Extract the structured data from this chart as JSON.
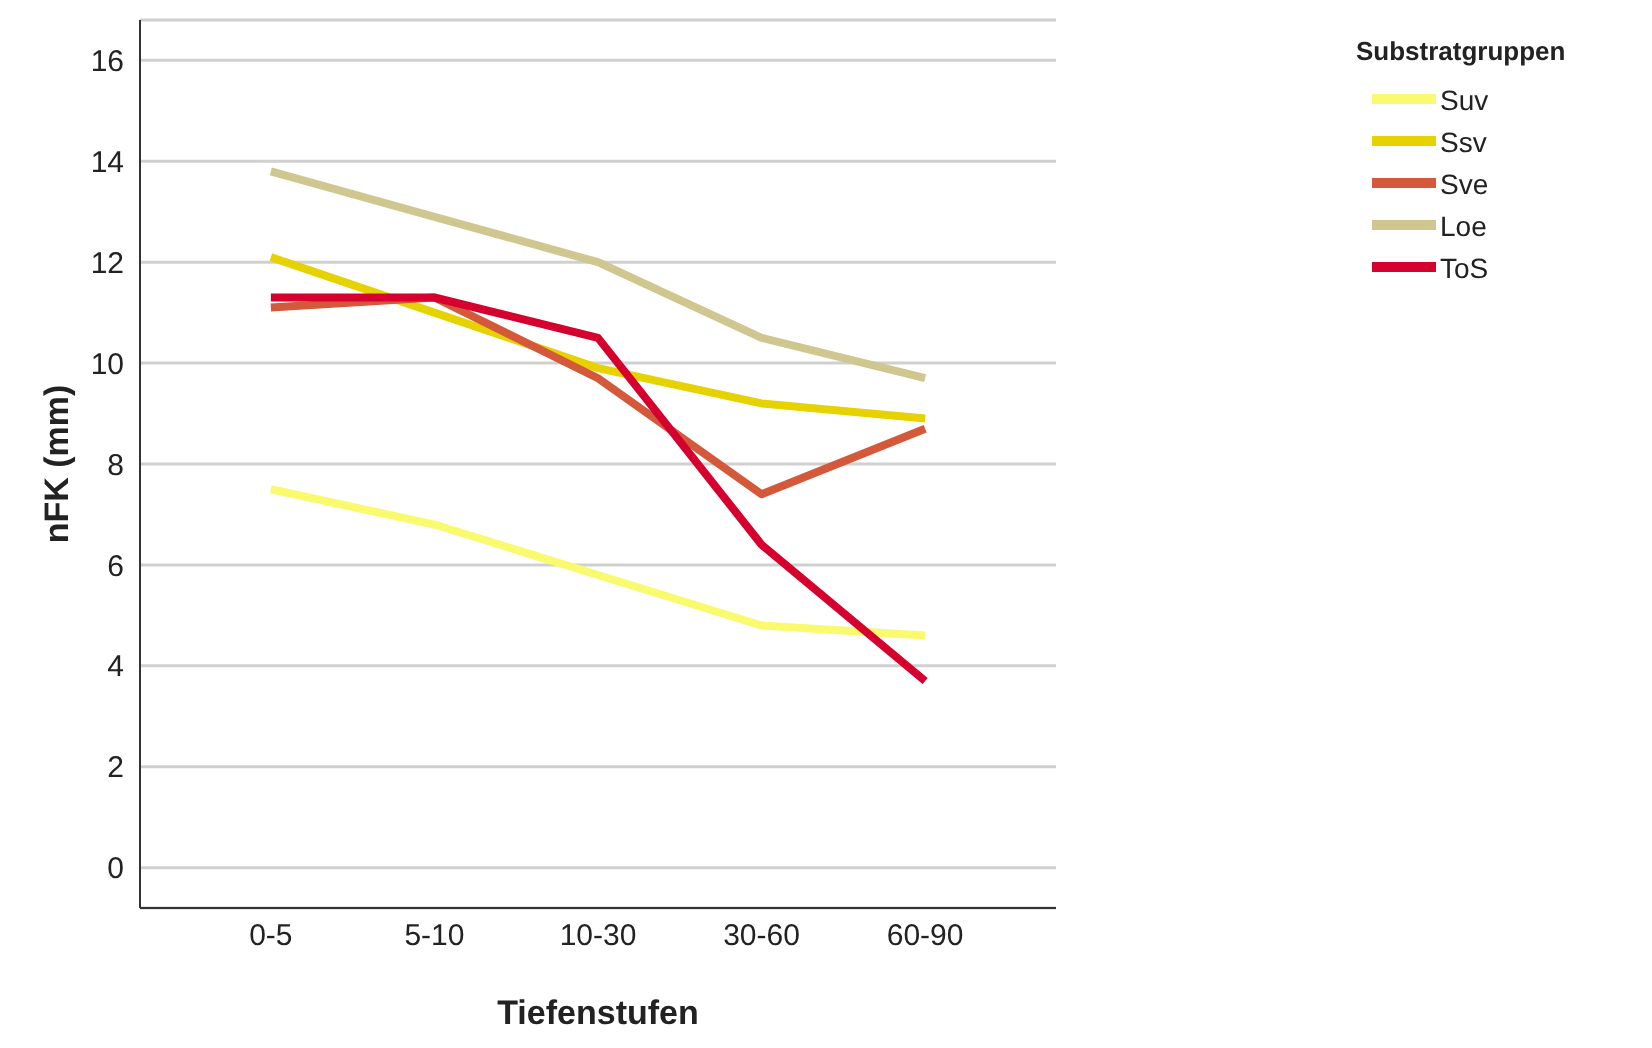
{
  "chart_data": {
    "type": "line",
    "xlabel": "Tiefenstufen",
    "ylabel": "nFK (mm)",
    "legend_title": "Substratgruppen",
    "categories": [
      "0-5",
      "5-10",
      "10-30",
      "30-60",
      "60-90"
    ],
    "series": [
      {
        "name": "Suv",
        "color": "#fafa6e",
        "values": [
          7.5,
          6.8,
          5.8,
          4.8,
          4.6
        ]
      },
      {
        "name": "Ssv",
        "color": "#e6d200",
        "values": [
          12.1,
          11.0,
          9.9,
          9.2,
          8.9
        ]
      },
      {
        "name": "Sve",
        "color": "#d4583a",
        "values": [
          11.1,
          11.3,
          9.7,
          7.4,
          8.7
        ]
      },
      {
        "name": "Loe",
        "color": "#d0c68f",
        "values": [
          13.8,
          12.9,
          12.0,
          10.5,
          9.7
        ]
      },
      {
        "name": "ToS",
        "color": "#d6002f",
        "values": [
          11.3,
          11.3,
          10.5,
          6.4,
          3.7
        ]
      }
    ],
    "ylim": [
      -0.8,
      16.8
    ],
    "yticks": [
      0,
      2,
      4,
      6,
      8,
      10,
      12,
      14,
      16
    ],
    "grid": "y",
    "legend": "top right",
    "marker": "none",
    "line_style": "solid"
  }
}
